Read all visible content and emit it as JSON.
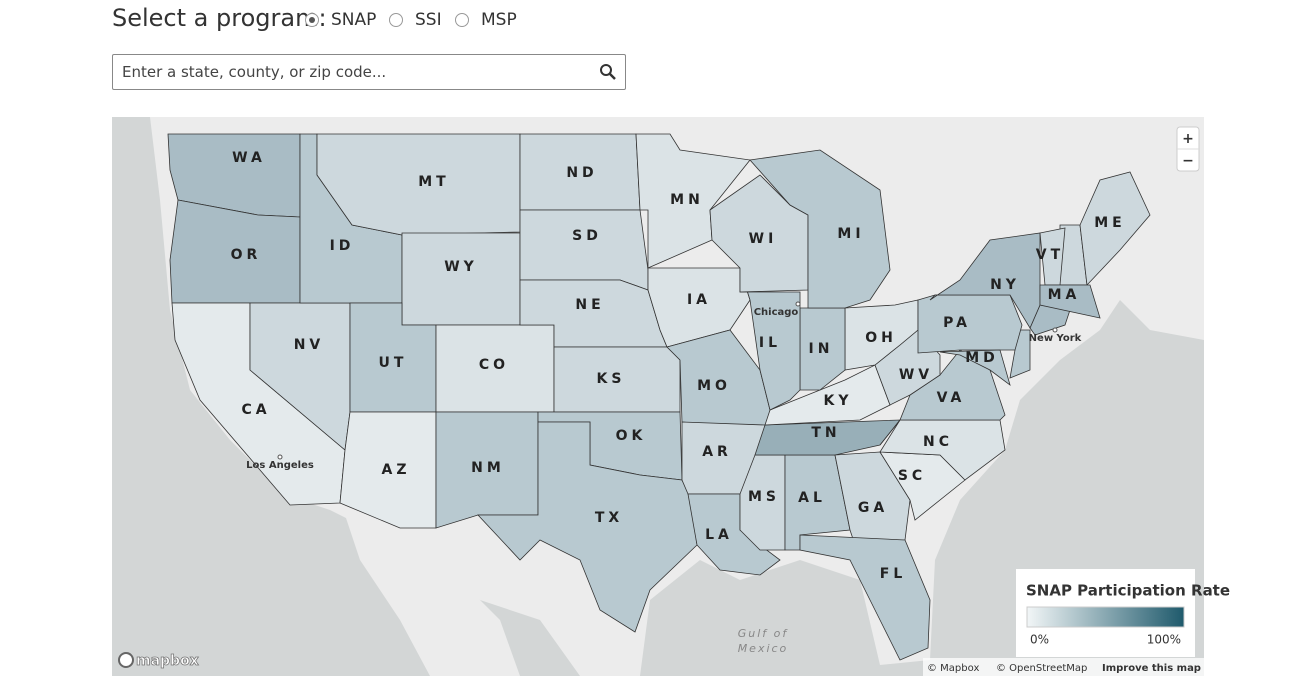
{
  "header": {
    "label": "Select a program:",
    "options": [
      {
        "label": "SNAP",
        "selected": true
      },
      {
        "label": "SSI"
      },
      {
        "label": "MSP"
      }
    ]
  },
  "search": {
    "placeholder": "Enter a state, county, or zip code..."
  },
  "map": {
    "states": [
      "WA",
      "OR",
      "CA",
      "NV",
      "ID",
      "MT",
      "WY",
      "UT",
      "AZ",
      "CO",
      "NM",
      "ND",
      "SD",
      "NE",
      "KS",
      "OK",
      "TX",
      "MN",
      "IA",
      "MO",
      "AR",
      "LA",
      "MS",
      "AL",
      "TN",
      "KY",
      "GA",
      "FL",
      "SC",
      "NC",
      "VA",
      "WV",
      "OH",
      "IN",
      "IL",
      "WI",
      "MI",
      "PA",
      "NY",
      "MD",
      "VT",
      "ME",
      "MA"
    ],
    "cities": [
      "Chicago",
      "New York",
      "Los Angeles"
    ],
    "water_label": [
      "Gulf of",
      "Mexico"
    ],
    "zoom": [
      "+",
      "−"
    ],
    "legend": {
      "title": "SNAP Participation Rate",
      "min": "0%",
      "max": "100%"
    },
    "attribution": [
      "© Mapbox",
      "© OpenStreetMap",
      "Improve this map"
    ],
    "logo": "mapbox"
  }
}
